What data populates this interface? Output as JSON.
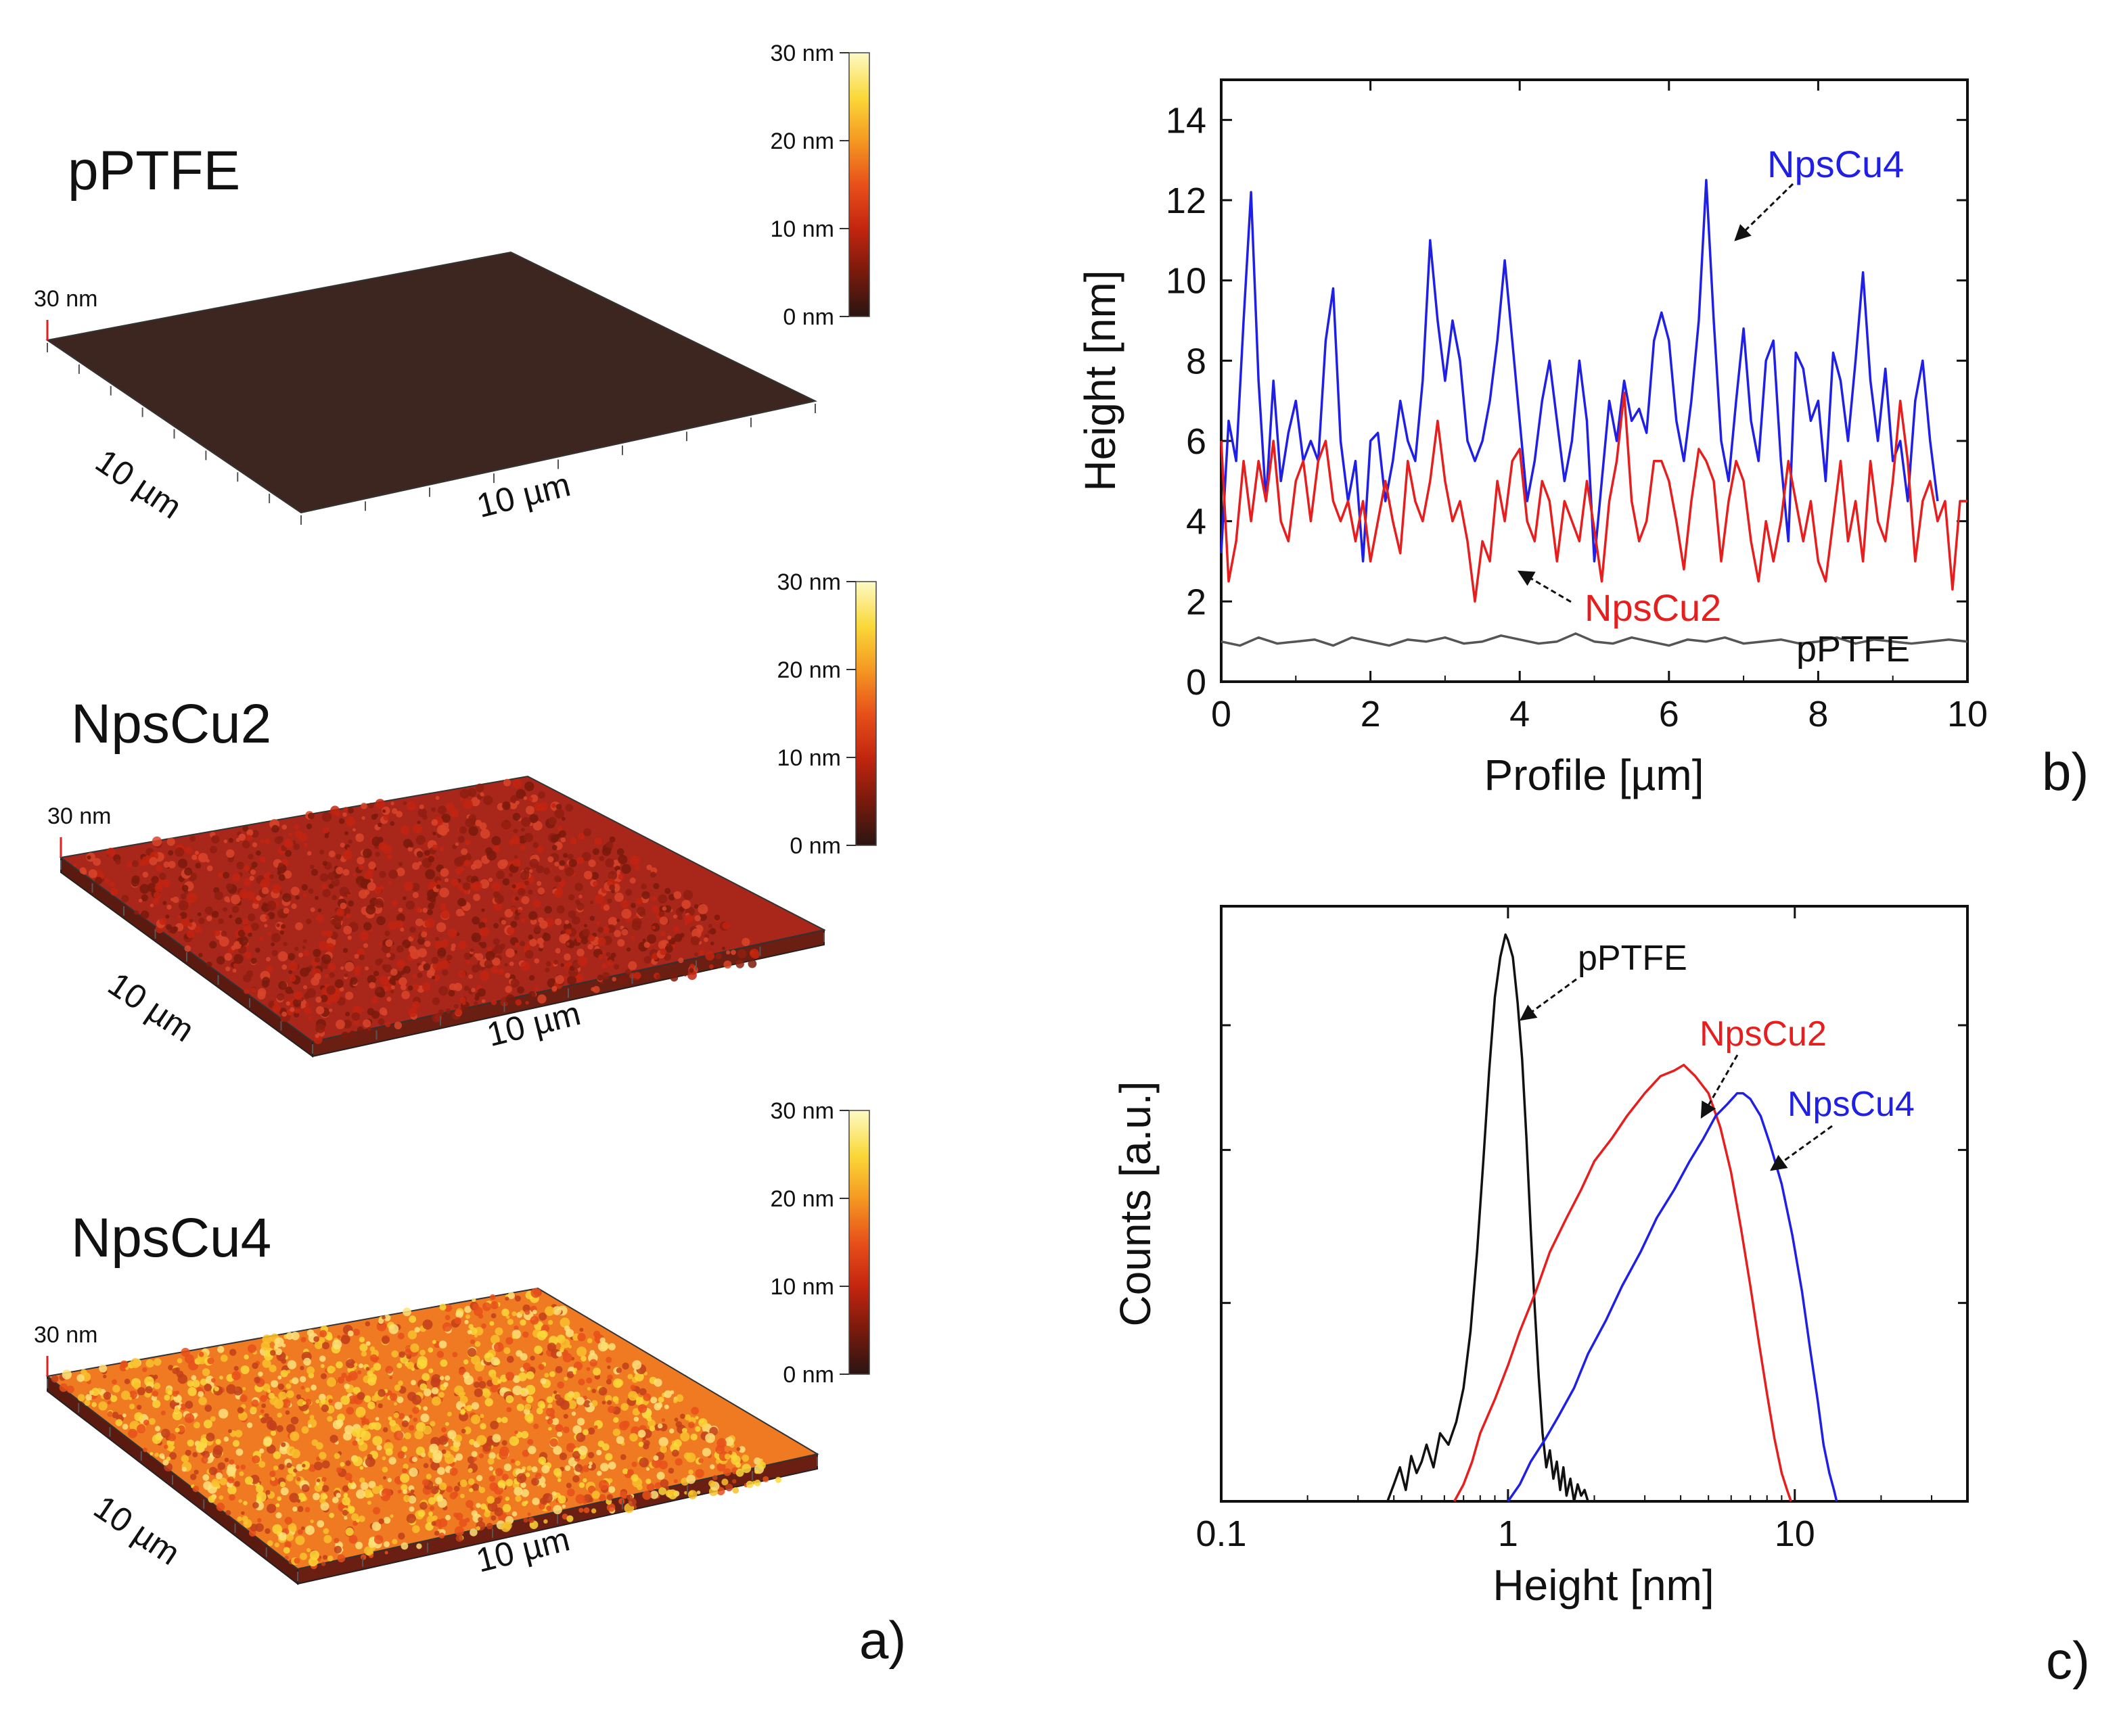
{
  "panel_a": {
    "panel_label": "a)",
    "axis_length_label": "10 µm",
    "height_label": "30 nm",
    "colorbar": {
      "ticks": [
        "30 nm",
        "20 nm",
        "10 nm",
        "0 nm"
      ],
      "colors": [
        "#2a1512",
        "#7a1a0c",
        "#c2250f",
        "#e8501a",
        "#f59a22",
        "#fad838",
        "#fdfac4"
      ]
    },
    "samples": [
      {
        "name": "pPTFE",
        "surface_color": "#3e2620",
        "roughness": 0
      },
      {
        "name": "NpsCu2",
        "surface_color": "#a9261b",
        "roughness": 0.5
      },
      {
        "name": "NpsCu4",
        "surface_color": "#f07a22",
        "roughness": 1
      }
    ]
  },
  "chart_data": [
    {
      "type": "line",
      "panel_label": "b)",
      "xlabel": "Profile [µm]",
      "ylabel": "Height [nm]",
      "xlim": [
        0,
        10
      ],
      "ylim": [
        0,
        15
      ],
      "xticks": [
        "0",
        "2",
        "4",
        "6",
        "8",
        "10"
      ],
      "yticks": [
        "0",
        "2",
        "4",
        "6",
        "8",
        "10",
        "12",
        "14"
      ],
      "series": [
        {
          "name": "NpsCu4",
          "color": "#1f1fe6",
          "x": [
            0,
            0.1,
            0.2,
            0.3,
            0.4,
            0.5,
            0.6,
            0.7,
            0.8,
            0.9,
            1.0,
            1.1,
            1.2,
            1.3,
            1.4,
            1.5,
            1.6,
            1.7,
            1.8,
            1.9,
            2.0,
            2.1,
            2.2,
            2.3,
            2.4,
            2.5,
            2.6,
            2.7,
            2.8,
            2.9,
            3.0,
            3.1,
            3.2,
            3.3,
            3.4,
            3.5,
            3.6,
            3.7,
            3.8,
            3.9,
            4.0,
            4.1,
            4.2,
            4.3,
            4.4,
            4.5,
            4.6,
            4.7,
            4.8,
            4.9,
            5.0,
            5.1,
            5.2,
            5.3,
            5.4,
            5.5,
            5.6,
            5.7,
            5.8,
            5.9,
            6.0,
            6.1,
            6.2,
            6.3,
            6.4,
            6.5,
            6.6,
            6.7,
            6.8,
            6.9,
            7.0,
            7.1,
            7.2,
            7.3,
            7.4,
            7.5,
            7.6,
            7.7,
            7.8,
            7.9,
            8.0,
            8.1,
            8.2,
            8.3,
            8.4,
            8.5,
            8.6,
            8.7,
            8.8,
            8.9,
            9.0,
            9.1,
            9.2,
            9.3,
            9.4,
            9.5,
            9.6
          ],
          "y": [
            3.2,
            6.5,
            5.5,
            9.0,
            12.2,
            7.5,
            4.5,
            7.5,
            5.0,
            6.2,
            7.0,
            5.5,
            6.0,
            5.5,
            8.5,
            9.8,
            6.0,
            4.5,
            5.5,
            3.0,
            6.0,
            6.2,
            4.5,
            5.5,
            7.0,
            6.0,
            5.5,
            7.5,
            11.0,
            9.0,
            7.5,
            9.0,
            8.0,
            6.0,
            5.5,
            6.0,
            7.0,
            8.5,
            10.5,
            8.5,
            6.5,
            4.5,
            5.5,
            7.0,
            8.0,
            6.5,
            5.0,
            6.0,
            8.0,
            6.5,
            3.0,
            5.0,
            7.0,
            6.0,
            7.5,
            6.5,
            6.8,
            6.2,
            8.5,
            9.2,
            8.5,
            6.5,
            5.5,
            7.0,
            9.0,
            12.5,
            9.0,
            6.0,
            5.0,
            7.0,
            8.8,
            6.5,
            5.5,
            8.0,
            8.5,
            5.5,
            3.5,
            8.2,
            7.8,
            6.5,
            7.0,
            5.0,
            8.2,
            7.5,
            6.0,
            8.0,
            10.2,
            7.5,
            6.0,
            7.8,
            5.5,
            6.0,
            4.5,
            7.0,
            8.0,
            6.0,
            4.5
          ]
        },
        {
          "name": "NpsCu2",
          "color": "#e61e1e",
          "x": [
            0,
            0.1,
            0.2,
            0.3,
            0.4,
            0.5,
            0.6,
            0.7,
            0.8,
            0.9,
            1.0,
            1.1,
            1.2,
            1.3,
            1.4,
            1.5,
            1.6,
            1.7,
            1.8,
            1.9,
            2.0,
            2.1,
            2.2,
            2.3,
            2.4,
            2.5,
            2.6,
            2.7,
            2.8,
            2.9,
            3.0,
            3.1,
            3.2,
            3.3,
            3.4,
            3.5,
            3.6,
            3.7,
            3.8,
            3.9,
            4.0,
            4.1,
            4.2,
            4.3,
            4.4,
            4.5,
            4.6,
            4.7,
            4.8,
            4.9,
            5.0,
            5.1,
            5.2,
            5.3,
            5.4,
            5.5,
            5.6,
            5.7,
            5.8,
            5.9,
            6.0,
            6.1,
            6.2,
            6.3,
            6.4,
            6.5,
            6.6,
            6.7,
            6.8,
            6.9,
            7.0,
            7.1,
            7.2,
            7.3,
            7.4,
            7.5,
            7.6,
            7.7,
            7.8,
            7.9,
            8.0,
            8.1,
            8.2,
            8.3,
            8.4,
            8.5,
            8.6,
            8.7,
            8.8,
            8.9,
            9.0,
            9.1,
            9.2,
            9.3,
            9.4,
            9.5,
            9.6,
            9.7,
            9.8,
            9.9,
            10.0
          ],
          "y": [
            6.0,
            2.5,
            3.5,
            5.5,
            4.0,
            5.5,
            4.5,
            6.0,
            4.0,
            3.5,
            5.0,
            5.5,
            4.0,
            5.5,
            6.0,
            4.5,
            4.0,
            4.5,
            3.5,
            4.5,
            3.0,
            4.0,
            5.0,
            4.0,
            3.2,
            5.5,
            4.5,
            4.0,
            5.0,
            6.5,
            5.0,
            4.0,
            4.5,
            3.5,
            2.0,
            3.5,
            3.0,
            5.0,
            4.0,
            5.5,
            5.8,
            4.0,
            3.5,
            5.0,
            4.5,
            3.0,
            4.5,
            4.0,
            3.5,
            5.0,
            3.8,
            2.5,
            4.5,
            5.5,
            7.2,
            4.5,
            3.5,
            4.0,
            5.5,
            5.5,
            5.0,
            4.0,
            2.8,
            4.5,
            5.8,
            5.5,
            5.0,
            3.0,
            4.5,
            5.5,
            5.0,
            3.5,
            2.5,
            4.0,
            3.0,
            4.0,
            5.5,
            4.5,
            3.5,
            4.5,
            3.0,
            2.5,
            4.0,
            5.5,
            3.5,
            4.5,
            3.0,
            5.5,
            4.0,
            3.5,
            5.0,
            7.0,
            5.5,
            3.0,
            4.5,
            5.0,
            4.0,
            4.5,
            2.3,
            4.5,
            4.5
          ]
        },
        {
          "name": "pPTFE",
          "color": "#555555",
          "x": [
            0,
            0.25,
            0.5,
            0.75,
            1.0,
            1.25,
            1.5,
            1.75,
            2.0,
            2.25,
            2.5,
            2.75,
            3.0,
            3.25,
            3.5,
            3.75,
            4.0,
            4.25,
            4.5,
            4.75,
            5.0,
            5.25,
            5.5,
            5.75,
            6.0,
            6.25,
            6.5,
            6.75,
            7.0,
            7.25,
            7.5,
            7.75,
            8.0,
            8.25,
            8.5,
            8.75,
            9.0,
            9.25,
            9.5,
            9.75,
            10.0
          ],
          "y": [
            1.0,
            0.9,
            1.1,
            0.95,
            1.0,
            1.05,
            0.9,
            1.1,
            1.0,
            0.9,
            1.05,
            1.0,
            1.1,
            0.95,
            1.0,
            1.15,
            1.05,
            0.95,
            1.0,
            1.2,
            1.0,
            0.95,
            1.1,
            1.0,
            0.9,
            1.05,
            1.0,
            1.1,
            0.95,
            1.0,
            1.05,
            0.95,
            1.0,
            1.1,
            0.95,
            1.05,
            1.0,
            0.95,
            1.0,
            1.05,
            1.0
          ]
        }
      ],
      "annotations": [
        "NpsCu4",
        "NpsCu2",
        "pPTFE"
      ]
    },
    {
      "type": "line",
      "panel_label": "c)",
      "xlabel": "Height [nm]",
      "ylabel": "Counts [a.u.]",
      "xscale": "log",
      "xlim": [
        0.1,
        40
      ],
      "ylim": [
        0,
        1.05
      ],
      "xticks": [
        "0.1",
        "1",
        "10"
      ],
      "series": [
        {
          "name": "pPTFE",
          "color": "#111111",
          "x": [
            0.38,
            0.4,
            0.42,
            0.44,
            0.46,
            0.48,
            0.5,
            0.52,
            0.55,
            0.58,
            0.62,
            0.66,
            0.7,
            0.74,
            0.78,
            0.82,
            0.86,
            0.9,
            0.94,
            0.98,
            1.0,
            1.04,
            1.08,
            1.12,
            1.16,
            1.2,
            1.24,
            1.28,
            1.32,
            1.36,
            1.4,
            1.44,
            1.48,
            1.52,
            1.56,
            1.6,
            1.65,
            1.7,
            1.75,
            1.8,
            1.85,
            1.9
          ],
          "y": [
            0.0,
            0.03,
            0.06,
            0.02,
            0.08,
            0.05,
            0.07,
            0.1,
            0.06,
            0.12,
            0.1,
            0.14,
            0.2,
            0.3,
            0.44,
            0.6,
            0.76,
            0.89,
            0.96,
            1.0,
            0.99,
            0.96,
            0.88,
            0.78,
            0.64,
            0.48,
            0.34,
            0.22,
            0.12,
            0.06,
            0.09,
            0.04,
            0.07,
            0.02,
            0.06,
            0.01,
            0.04,
            0.0,
            0.03,
            0.01,
            0.02,
            0.0
          ]
        },
        {
          "name": "NpsCu2",
          "color": "#e61e1e",
          "x": [
            0.65,
            0.7,
            0.75,
            0.8,
            0.9,
            1.0,
            1.1,
            1.25,
            1.4,
            1.6,
            1.8,
            2.0,
            2.3,
            2.6,
            3.0,
            3.4,
            3.8,
            4.1,
            4.5,
            5.0,
            5.5,
            6.0,
            6.5,
            7.0,
            7.5,
            8.0,
            8.5,
            9.0,
            9.4,
            9.7
          ],
          "y": [
            0.0,
            0.03,
            0.07,
            0.12,
            0.18,
            0.24,
            0.3,
            0.37,
            0.44,
            0.5,
            0.55,
            0.6,
            0.64,
            0.68,
            0.72,
            0.75,
            0.76,
            0.77,
            0.75,
            0.72,
            0.66,
            0.58,
            0.48,
            0.38,
            0.28,
            0.19,
            0.11,
            0.05,
            0.02,
            0.0
          ]
        },
        {
          "name": "NpsCu4",
          "color": "#1f1fe6",
          "x": [
            1.0,
            1.1,
            1.2,
            1.35,
            1.5,
            1.7,
            1.9,
            2.2,
            2.5,
            2.9,
            3.3,
            3.8,
            4.3,
            4.8,
            5.3,
            5.8,
            6.3,
            6.6,
            7.0,
            7.6,
            8.2,
            9.0,
            9.8,
            10.6,
            11.3,
            12.0,
            12.6,
            13.2,
            13.7,
            14.0
          ],
          "y": [
            0.0,
            0.03,
            0.07,
            0.11,
            0.15,
            0.2,
            0.26,
            0.32,
            0.38,
            0.44,
            0.5,
            0.55,
            0.6,
            0.64,
            0.68,
            0.7,
            0.72,
            0.72,
            0.71,
            0.68,
            0.63,
            0.56,
            0.47,
            0.37,
            0.27,
            0.18,
            0.1,
            0.05,
            0.02,
            0.0
          ]
        }
      ],
      "annotations": [
        "pPTFE",
        "NpsCu2",
        "NpsCu4"
      ]
    }
  ]
}
